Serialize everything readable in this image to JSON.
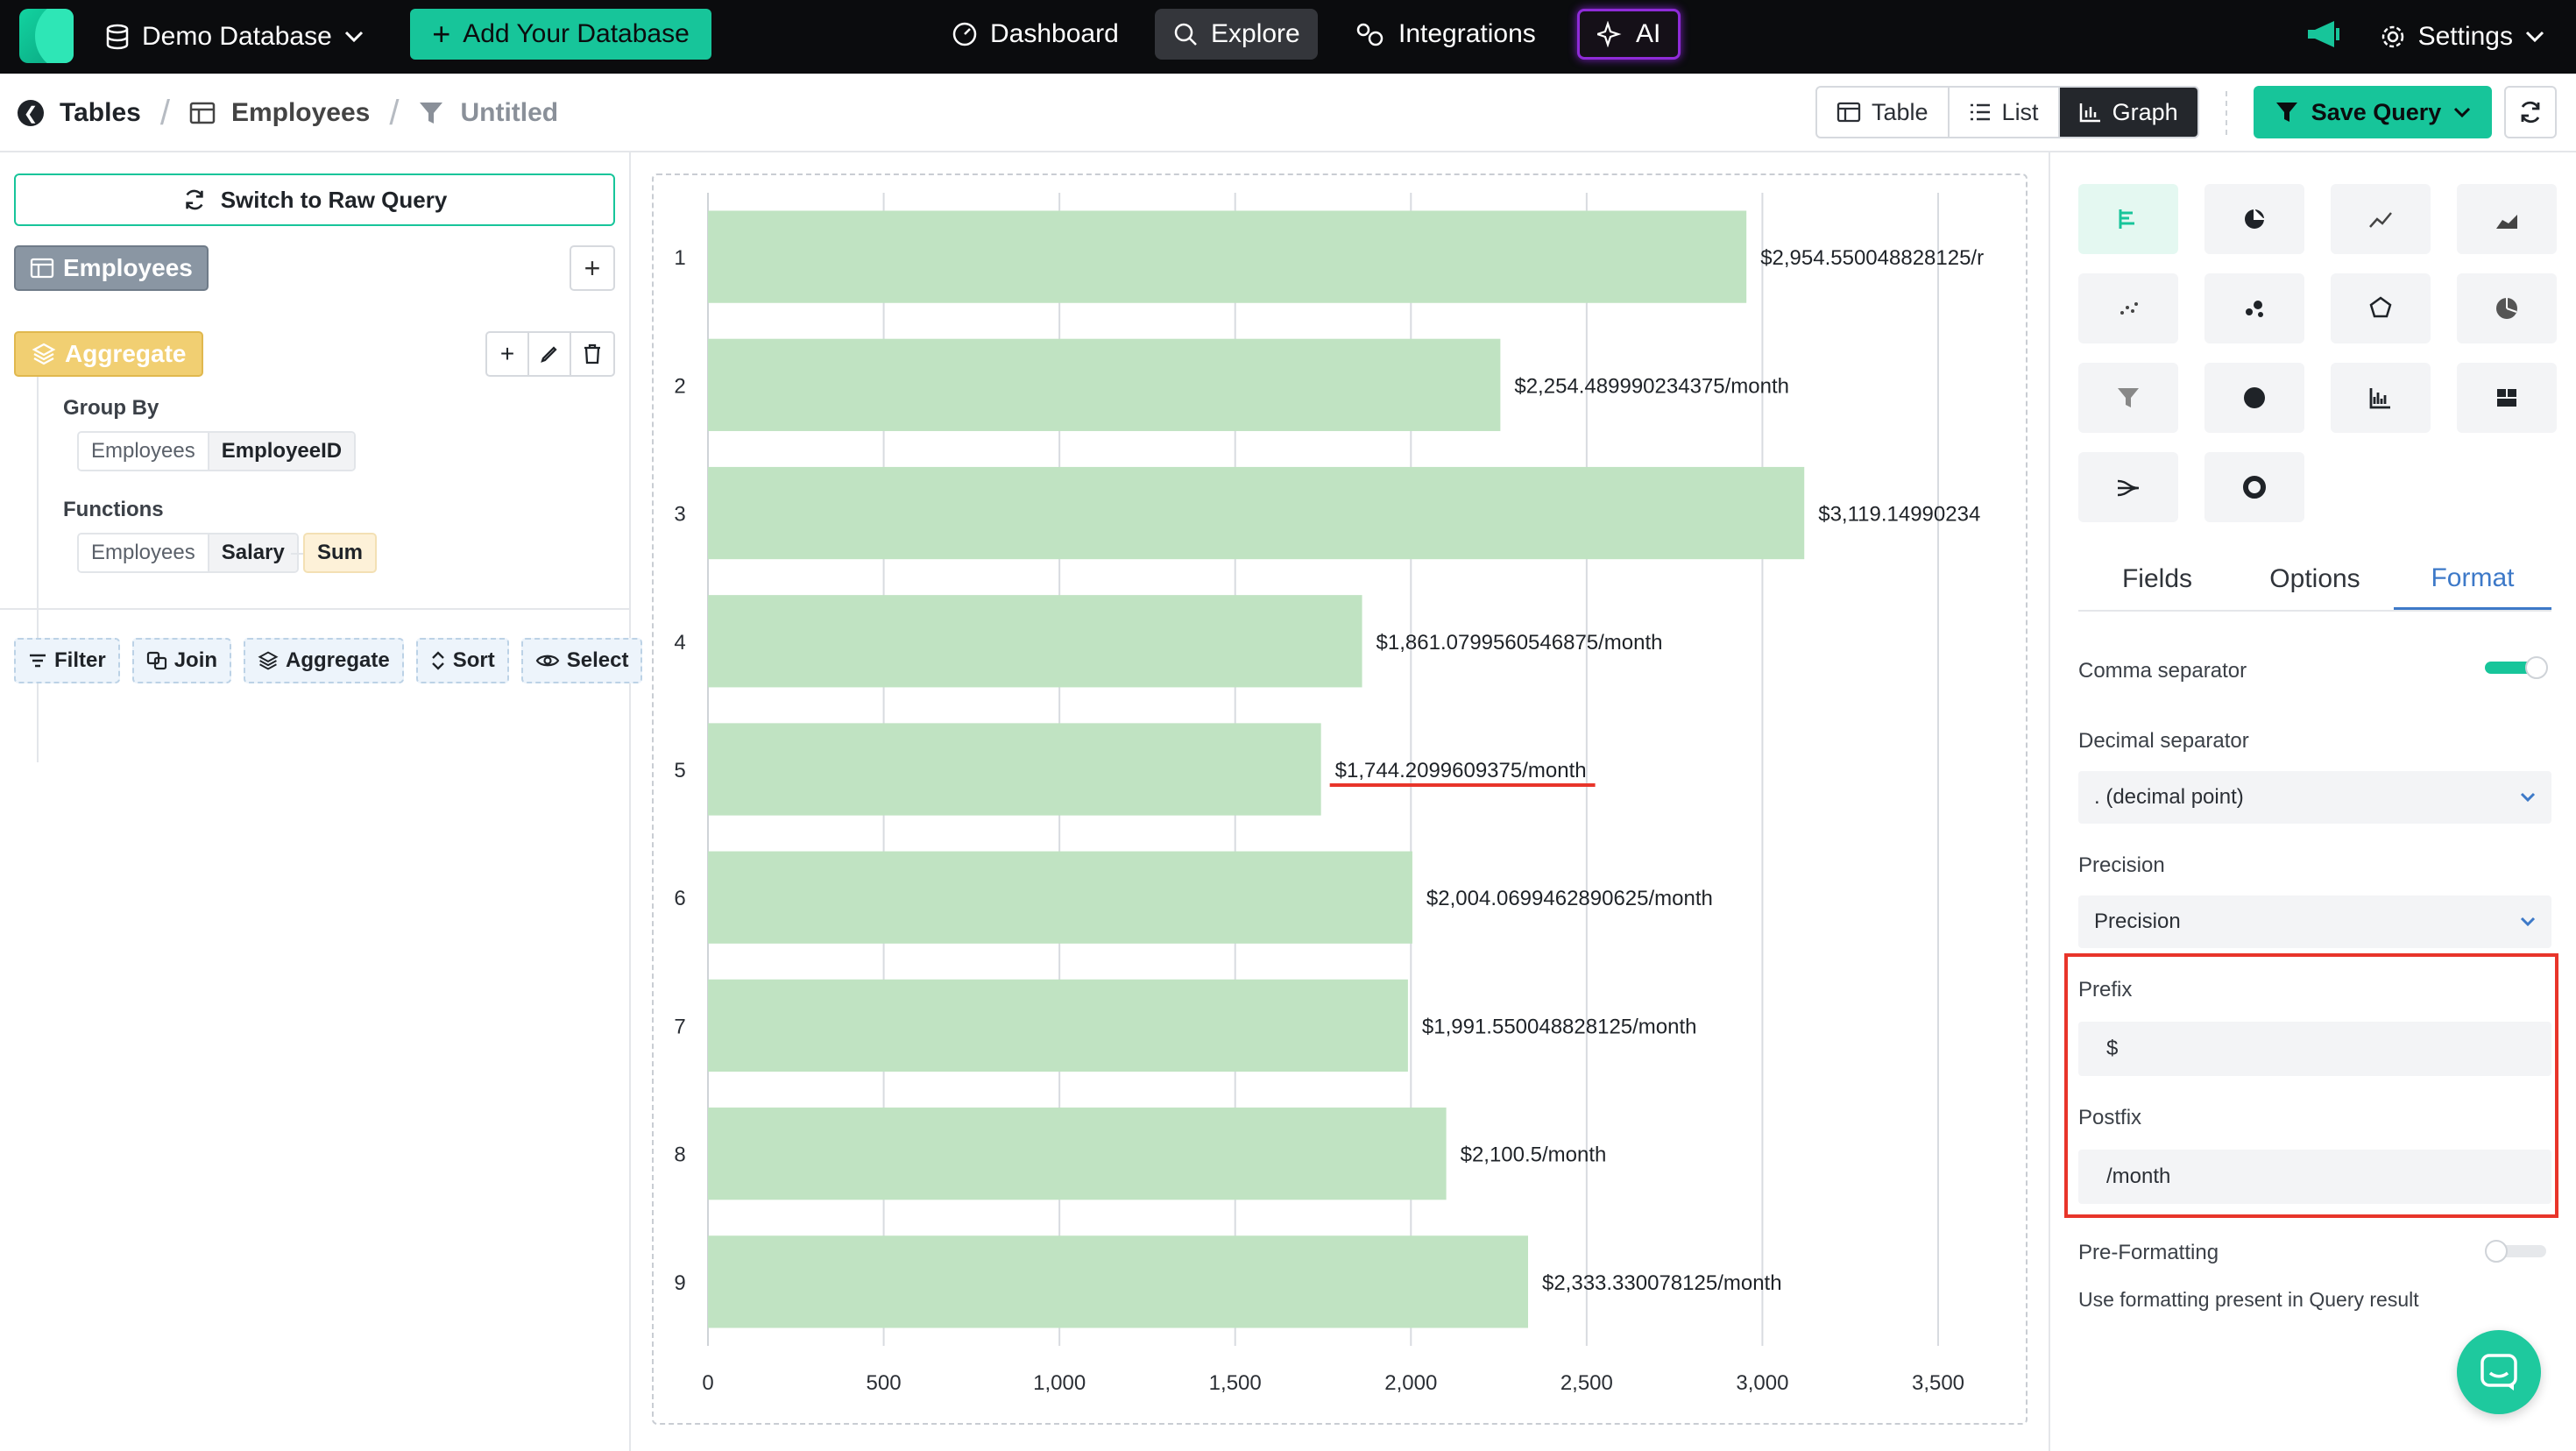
{
  "topnav": {
    "database_label": "Demo Database",
    "add_database_label": "Add Your Database",
    "items": [
      {
        "label": "Dashboard",
        "icon": "dashboard-icon"
      },
      {
        "label": "Explore",
        "icon": "search-icon"
      },
      {
        "label": "Integrations",
        "icon": "integrations-icon"
      },
      {
        "label": "AI",
        "icon": "sparkle-icon"
      }
    ],
    "active_item": "Explore",
    "settings_label": "Settings"
  },
  "breadcrumb": {
    "items": [
      "Tables",
      "Employees",
      "Untitled"
    ]
  },
  "toolbar": {
    "views": [
      "Table",
      "List",
      "Graph"
    ],
    "selected_view": "Graph",
    "save_label": "Save Query"
  },
  "query": {
    "raw_query_label": "Switch to Raw Query",
    "table_label": "Employees",
    "aggregate_label": "Aggregate",
    "group_by_label": "Group By",
    "group_by": {
      "table": "Employees",
      "column": "EmployeeID"
    },
    "functions_label": "Functions",
    "function": {
      "table": "Employees",
      "column": "Salary",
      "op": "Sum"
    },
    "actions": [
      "Filter",
      "Join",
      "Aggregate",
      "Sort",
      "Select"
    ]
  },
  "chart_data": {
    "type": "bar",
    "orientation": "horizontal",
    "categories": [
      "1",
      "2",
      "3",
      "4",
      "5",
      "6",
      "7",
      "8",
      "9"
    ],
    "values": [
      2954.550048828125,
      2254.489990234375,
      3119.14990234375,
      1861.0799560546875,
      1744.2099609375,
      2004.0699462890625,
      1991.550048828125,
      2100.5,
      2333.330078125
    ],
    "data_labels": [
      "$2,954.550048828125/r",
      "$2,254.489990234375/month",
      "$3,119.14990234",
      "$1,861.0799560546875/month",
      "$1,744.2099609375/month",
      "$2,004.0699462890625/month",
      "$1,991.550048828125/month",
      "$2,100.5/month",
      "$2,333.330078125/month"
    ],
    "x_ticks": [
      "0",
      "500",
      "1,000",
      "1,500",
      "2,000",
      "2,500",
      "3,000",
      "3,500"
    ],
    "xlim": [
      0,
      3500
    ],
    "grid": true,
    "bar_color": "#c0e3c2",
    "highlighted_label_index": 4,
    "highlight_color": "#e8352a"
  },
  "right_panel": {
    "chart_types": [
      "bar-chart-icon",
      "pie-chart-icon",
      "line-chart-icon",
      "area-chart-icon",
      "scatter-chart-icon",
      "bubble-chart-icon",
      "radar-chart-icon",
      "polar-chart-icon",
      "funnel-chart-icon",
      "map-chart-icon",
      "histogram-icon",
      "widget-icon",
      "sankey-icon",
      "donut-chart-icon"
    ],
    "selected_chart_type": "bar-chart-icon",
    "tabs": [
      "Fields",
      "Options",
      "Format"
    ],
    "active_tab": "Format",
    "comma_separator_label": "Comma separator",
    "comma_separator_on": true,
    "decimal_separator_label": "Decimal separator",
    "decimal_separator_value": ". (decimal point)",
    "precision_label": "Precision",
    "precision_value": "Precision",
    "prefix_label": "Prefix",
    "prefix_value": "$",
    "postfix_label": "Postfix",
    "postfix_value": "/month",
    "preformatting_label": "Pre-Formatting",
    "preformatting_on": false,
    "preformatting_help": "Use formatting present in Query result"
  },
  "colors": {
    "accent": "#17c59a",
    "active_tab": "#3d79c8",
    "highlight": "#e8352a"
  }
}
